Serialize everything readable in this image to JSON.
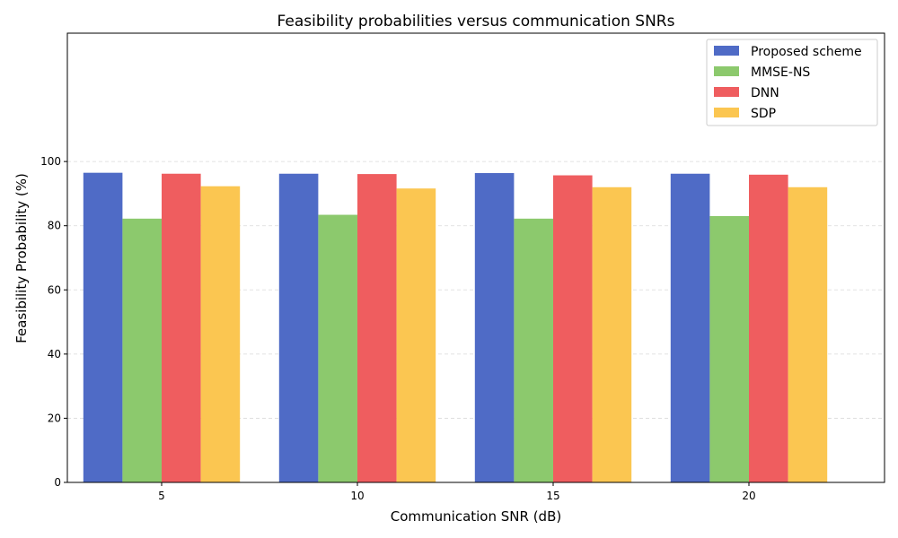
{
  "chart_data": {
    "type": "bar",
    "title": "Feasibility probabilities versus communication SNRs",
    "xlabel": "Communication SNR (dB)",
    "ylabel": "Feasibility Probability (%)",
    "categories": [
      "5",
      "10",
      "15",
      "20"
    ],
    "ylim": [
      0,
      140
    ],
    "yticks": [
      0,
      20,
      40,
      60,
      80,
      100
    ],
    "grid": "y-dashed",
    "legend_position": "top-right",
    "series": [
      {
        "name": "Proposed scheme",
        "color": "#4f6bc6",
        "values": [
          96.5,
          96.2,
          96.4,
          96.2
        ]
      },
      {
        "name": "MMSE-NS",
        "color": "#8cc96d",
        "values": [
          82.2,
          83.4,
          82.2,
          83.0
        ]
      },
      {
        "name": "DNN",
        "color": "#ef5d5f",
        "values": [
          96.2,
          96.1,
          95.7,
          95.9
        ]
      },
      {
        "name": "SDP",
        "color": "#fbc651",
        "values": [
          92.3,
          91.6,
          92.0,
          92.0
        ]
      }
    ]
  }
}
